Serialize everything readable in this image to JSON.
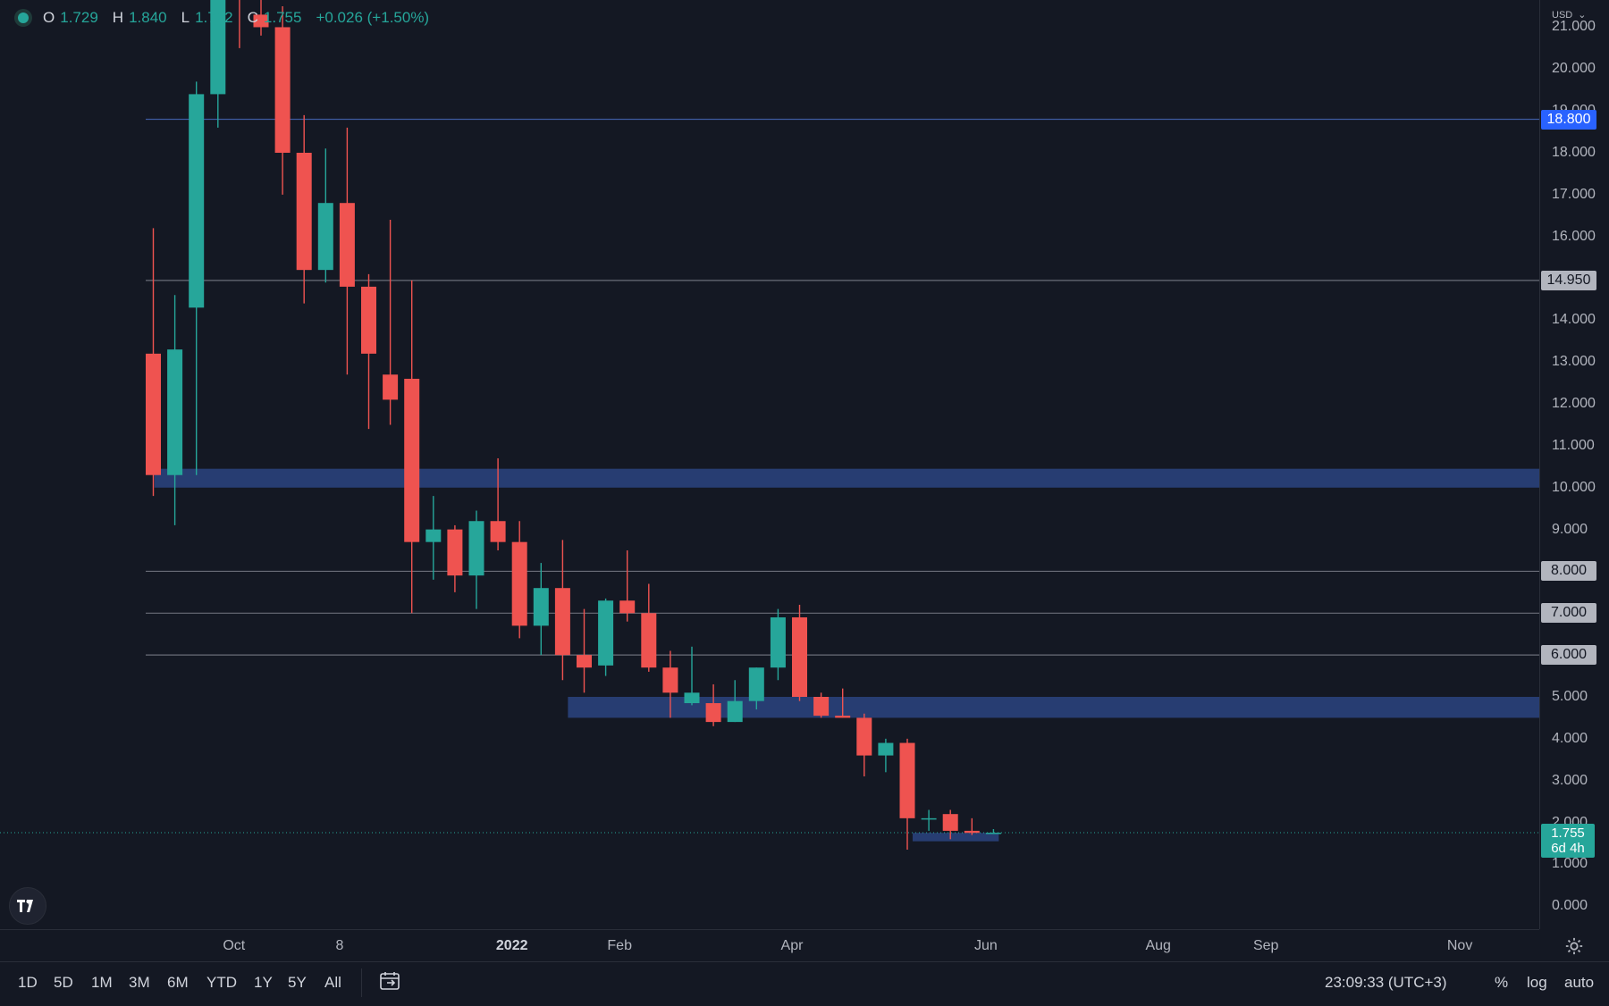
{
  "legend": {
    "o_label": "O",
    "o_value": "1.729",
    "h_label": "H",
    "h_value": "1.840",
    "l_label": "L",
    "l_value": "1.722",
    "c_label": "C",
    "c_value": "1.755",
    "change": "+0.026 (+1.50%)"
  },
  "currency": "USD",
  "current_price": {
    "price": "1.755",
    "countdown": "6d 4h"
  },
  "bottom_bar": {
    "ranges": [
      "1D",
      "5D",
      "1M",
      "3M",
      "6M",
      "YTD",
      "1Y",
      "5Y",
      "All"
    ],
    "clock": "23:09:33 (UTC+3)",
    "percent": "%",
    "log": "log",
    "auto": "auto"
  },
  "colors": {
    "up": "#26a69a",
    "down": "#ef5350",
    "zone": "#2a4480",
    "blue_label": "#2962ff",
    "gray_label": "#b2b5be"
  },
  "chart_data": {
    "type": "candlestick",
    "interval": "weekly",
    "yaxis": {
      "ticks": [
        "0.000",
        "1.000",
        "2.000",
        "3.000",
        "4.000",
        "5.000",
        "6.000",
        "7.000",
        "8.000",
        "9.000",
        "10.000",
        "11.000",
        "12.000",
        "13.000",
        "14.000",
        "15.000",
        "16.000",
        "17.000",
        "18.000",
        "19.000",
        "20.000",
        "21.000"
      ],
      "range": [
        -0.55,
        21.65
      ]
    },
    "xaxis": {
      "ticks": [
        {
          "label": "Oct",
          "week": 4.1,
          "bold": false
        },
        {
          "label": "8",
          "week": 9.0,
          "bold": false
        },
        {
          "label": "2022",
          "week": 17.0,
          "bold": true
        },
        {
          "label": "Feb",
          "week": 22.0,
          "bold": false
        },
        {
          "label": "Apr",
          "week": 30.0,
          "bold": false
        },
        {
          "label": "Jun",
          "week": 39.0,
          "bold": false
        },
        {
          "label": "Aug",
          "week": 47.0,
          "bold": false
        },
        {
          "label": "Sep",
          "week": 52.0,
          "bold": false
        },
        {
          "label": "Nov",
          "week": 61.0,
          "bold": false
        }
      ]
    },
    "candles": [
      {
        "o": 13.2,
        "h": 16.2,
        "l": 9.8,
        "c": 10.3
      },
      {
        "o": 10.3,
        "h": 14.6,
        "l": 9.1,
        "c": 13.3
      },
      {
        "o": 14.3,
        "h": 19.7,
        "l": 10.3,
        "c": 19.4
      },
      {
        "o": 19.4,
        "h": 24.0,
        "l": 18.6,
        "c": 22.0
      },
      {
        "o": 22.0,
        "h": 23.5,
        "l": 20.5,
        "c": 21.8
      },
      {
        "o": 21.3,
        "h": 22.0,
        "l": 20.8,
        "c": 21.0
      },
      {
        "o": 21.0,
        "h": 21.5,
        "l": 17.0,
        "c": 18.0
      },
      {
        "o": 18.0,
        "h": 18.9,
        "l": 14.4,
        "c": 15.2
      },
      {
        "o": 15.2,
        "h": 18.1,
        "l": 14.9,
        "c": 16.8
      },
      {
        "o": 16.8,
        "h": 18.6,
        "l": 12.7,
        "c": 14.8
      },
      {
        "o": 14.8,
        "h": 15.1,
        "l": 11.4,
        "c": 13.2
      },
      {
        "o": 12.7,
        "h": 16.4,
        "l": 11.5,
        "c": 12.1
      },
      {
        "o": 12.6,
        "h": 14.95,
        "l": 7.0,
        "c": 8.7
      },
      {
        "o": 8.7,
        "h": 9.8,
        "l": 7.8,
        "c": 9.0
      },
      {
        "o": 9.0,
        "h": 9.1,
        "l": 7.5,
        "c": 7.9
      },
      {
        "o": 7.9,
        "h": 9.45,
        "l": 7.1,
        "c": 9.2
      },
      {
        "o": 9.2,
        "h": 10.7,
        "l": 8.5,
        "c": 8.7
      },
      {
        "o": 8.7,
        "h": 9.2,
        "l": 6.4,
        "c": 6.7
      },
      {
        "o": 6.7,
        "h": 8.2,
        "l": 6.0,
        "c": 7.6
      },
      {
        "o": 7.6,
        "h": 8.75,
        "l": 5.4,
        "c": 6.0
      },
      {
        "o": 6.0,
        "h": 7.1,
        "l": 5.1,
        "c": 5.7
      },
      {
        "o": 5.75,
        "h": 7.35,
        "l": 5.5,
        "c": 7.3
      },
      {
        "o": 7.3,
        "h": 8.5,
        "l": 6.8,
        "c": 7.0
      },
      {
        "o": 7.0,
        "h": 7.7,
        "l": 5.6,
        "c": 5.7
      },
      {
        "o": 5.7,
        "h": 6.1,
        "l": 4.5,
        "c": 5.1
      },
      {
        "o": 4.85,
        "h": 6.2,
        "l": 4.8,
        "c": 5.1
      },
      {
        "o": 4.85,
        "h": 5.3,
        "l": 4.3,
        "c": 4.4
      },
      {
        "o": 4.4,
        "h": 5.4,
        "l": 4.4,
        "c": 4.9
      },
      {
        "o": 4.9,
        "h": 5.7,
        "l": 4.7,
        "c": 5.7
      },
      {
        "o": 5.7,
        "h": 7.1,
        "l": 5.4,
        "c": 6.9
      },
      {
        "o": 6.9,
        "h": 7.2,
        "l": 4.9,
        "c": 5.0
      },
      {
        "o": 5.0,
        "h": 5.1,
        "l": 4.5,
        "c": 4.55
      },
      {
        "o": 4.55,
        "h": 5.2,
        "l": 4.5,
        "c": 4.5
      },
      {
        "o": 4.5,
        "h": 4.6,
        "l": 3.1,
        "c": 3.6
      },
      {
        "o": 3.6,
        "h": 4.0,
        "l": 3.2,
        "c": 3.9
      },
      {
        "o": 3.9,
        "h": 4.0,
        "l": 1.35,
        "c": 2.1
      },
      {
        "o": 2.1,
        "h": 2.3,
        "l": 1.8,
        "c": 2.1
      },
      {
        "o": 2.2,
        "h": 2.3,
        "l": 1.6,
        "c": 1.8
      },
      {
        "o": 1.8,
        "h": 2.1,
        "l": 1.7,
        "c": 1.75
      },
      {
        "o": 1.729,
        "h": 1.84,
        "l": 1.722,
        "c": 1.755
      }
    ],
    "horizontal_lines": [
      {
        "price": 18.8,
        "label": "18.800",
        "style": "blue"
      },
      {
        "price": 14.95,
        "label": "14.950",
        "style": "gray"
      },
      {
        "price": 8.0,
        "label": "8.000",
        "style": "gray"
      },
      {
        "price": 7.0,
        "label": "7.000",
        "style": "gray"
      },
      {
        "price": 6.0,
        "label": "6.000",
        "style": "gray"
      }
    ],
    "zones": [
      {
        "from_week": 0.4,
        "low": 10.0,
        "high": 10.45
      },
      {
        "from_week": 19.6,
        "low": 4.5,
        "high": 5.0
      },
      {
        "from_week": 35.6,
        "to_week": 39.6,
        "low": 1.55,
        "high": 1.75
      }
    ]
  }
}
